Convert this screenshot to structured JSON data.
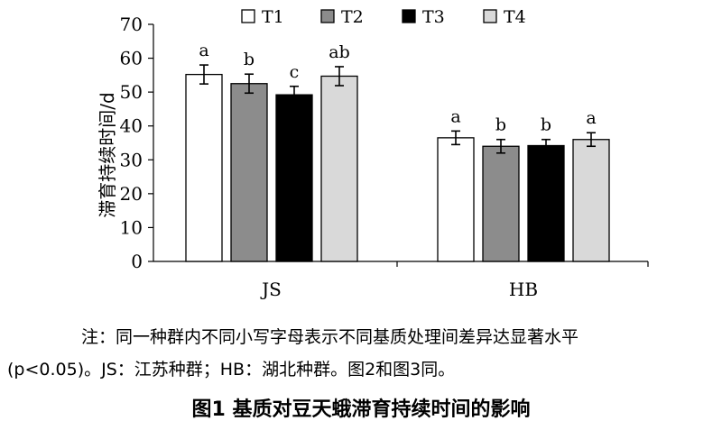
{
  "chart_data": {
    "type": "bar",
    "ylabel": "滞育持续时间/d",
    "ylim": [
      0,
      70
    ],
    "yticks": [
      0,
      10,
      20,
      30,
      40,
      50,
      60,
      70
    ],
    "grid": false,
    "legend_position": "top",
    "categories": [
      "JS",
      "HB"
    ],
    "series": [
      {
        "name": "T1",
        "color": "#ffffff",
        "values": [
          55.2,
          36.5
        ],
        "errors": [
          2.8,
          2.0
        ],
        "labels": [
          "a",
          "a"
        ]
      },
      {
        "name": "T2",
        "color": "#8c8c8c",
        "values": [
          52.5,
          34.0
        ],
        "errors": [
          2.8,
          2.0
        ],
        "labels": [
          "b",
          "b"
        ]
      },
      {
        "name": "T3",
        "color": "#000000",
        "values": [
          49.2,
          34.2
        ],
        "errors": [
          2.5,
          1.8
        ],
        "labels": [
          "c",
          "b"
        ]
      },
      {
        "name": "T4",
        "color": "#d9d9d9",
        "values": [
          54.7,
          36.0
        ],
        "errors": [
          2.8,
          2.0
        ],
        "labels": [
          "ab",
          "a"
        ]
      }
    ]
  },
  "note": {
    "line1": "注：同一种群内不同小写字母表示不同基质处理间差异达显著水平",
    "line2": "(p<0.05)。JS：江苏种群；HB：湖北种群。图2和图3同。"
  },
  "caption": "图1  基质对豆天蛾滞育持续时间的影响"
}
